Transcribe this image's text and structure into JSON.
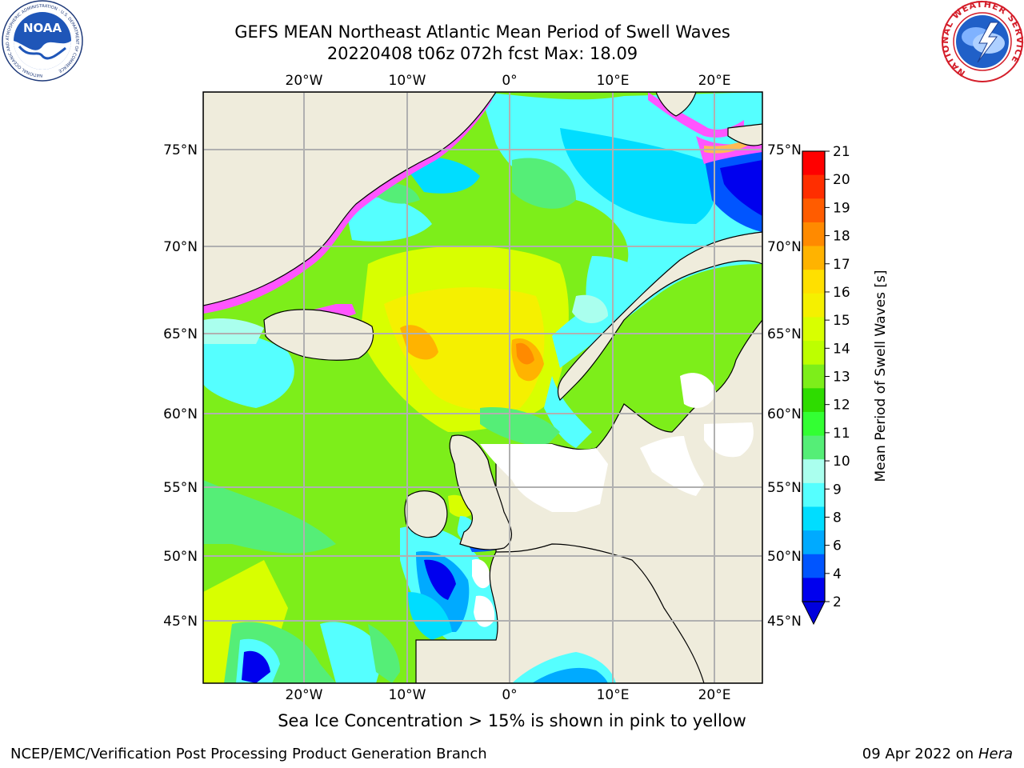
{
  "title_line1": "GEFS MEAN Northeast Atlantic Mean Period of Swell Waves",
  "title_line2": "20220408 t06z 072h fcst   Max: 18.09",
  "caption": "Sea Ice Concentration > 15% is shown in pink to yellow",
  "footer": {
    "left": "NCEP/EMC/Verification Post Processing Product Generation Branch",
    "date": "09 Apr 2022 on ",
    "machine": "Hera"
  },
  "logos": {
    "noaa": {
      "text": "NOAA",
      "ring_text": "NATIONAL OCEANIC AND ATMOSPHERIC ADMINISTRATION · U.S. DEPARTMENT OF COMMERCE"
    },
    "nws": {
      "ring_text": "NATIONAL WEATHER SERVICE"
    }
  },
  "map": {
    "lon_labels_top": [
      "20°W",
      "10°W",
      "0°",
      "10°E",
      "20°E"
    ],
    "lon_labels_bottom": [
      "20°W",
      "10°W",
      "0°",
      "10°E",
      "20°E"
    ],
    "lat_labels_left": [
      "75°N",
      "70°N",
      "65°N",
      "60°N",
      "55°N",
      "50°N",
      "45°N"
    ],
    "lat_labels_right": [
      "75°N",
      "70°N",
      "65°N",
      "60°N",
      "55°N",
      "50°N",
      "45°N"
    ],
    "colors": {
      "land": "#efecdc",
      "gridline": "#b0b0b0",
      "ice_pink": "#ff55ff",
      "ice_orange": "#ffbb55"
    }
  },
  "colorbar": {
    "label": "Mean Period of Swell Waves [s]",
    "ticks": [
      "21",
      "20",
      "19",
      "18",
      "17",
      "16",
      "15",
      "14",
      "13",
      "12",
      "11",
      "10",
      "9",
      "8",
      "6",
      "4",
      "2"
    ],
    "colors_top_to_bottom": [
      "#ff0000",
      "#ff2e00",
      "#ff5c00",
      "#ff8a00",
      "#ffb300",
      "#ffe000",
      "#f5f000",
      "#d8ff00",
      "#bdff00",
      "#7dee1a",
      "#2edc00",
      "#33ff33",
      "#55ee77",
      "#aaffee",
      "#55ffff",
      "#00ddff",
      "#00aaff",
      "#0055ff",
      "#0000ee"
    ],
    "under_color": "#0000dd"
  }
}
